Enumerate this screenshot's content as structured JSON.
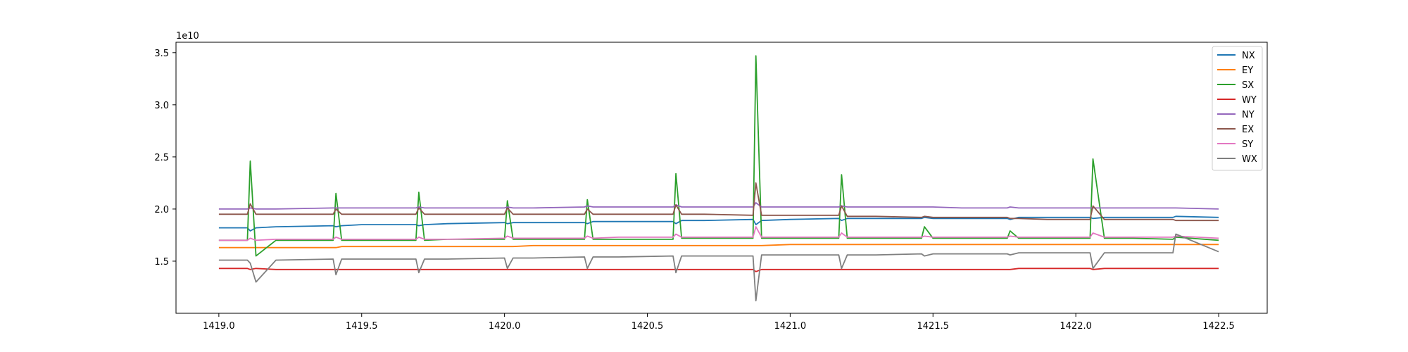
{
  "chart_data": {
    "type": "line",
    "title": "",
    "xlabel": "",
    "ylabel": "",
    "y_offset_text": "1e10",
    "xlim": [
      1418.85,
      1422.67
    ],
    "ylim": [
      1.0,
      3.6
    ],
    "xticks": [
      1419.0,
      1419.5,
      1420.0,
      1420.5,
      1421.0,
      1421.5,
      1422.0,
      1422.5
    ],
    "xtick_labels": [
      "1419.0",
      "1419.5",
      "1420.0",
      "1420.5",
      "1421.0",
      "1421.5",
      "1422.0",
      "1422.5"
    ],
    "yticks": [
      1.5,
      2.0,
      2.5,
      3.0,
      3.5
    ],
    "ytick_labels": [
      "1.5",
      "2.0",
      "2.5",
      "3.0",
      "3.5"
    ],
    "grid": false,
    "legend_position": "top-right",
    "x": [
      1419.0,
      1419.1,
      1419.11,
      1419.13,
      1419.2,
      1419.4,
      1419.41,
      1419.43,
      1419.5,
      1419.69,
      1419.7,
      1419.72,
      1419.8,
      1420.0,
      1420.01,
      1420.03,
      1420.1,
      1420.28,
      1420.29,
      1420.31,
      1420.4,
      1420.59,
      1420.6,
      1420.62,
      1420.7,
      1420.87,
      1420.88,
      1420.9,
      1421.0,
      1421.17,
      1421.18,
      1421.2,
      1421.3,
      1421.46,
      1421.47,
      1421.5,
      1421.6,
      1421.76,
      1421.77,
      1421.8,
      1421.9,
      1422.05,
      1422.06,
      1422.1,
      1422.2,
      1422.34,
      1422.35,
      1422.5
    ],
    "series": [
      {
        "name": "NX",
        "color": "#1f77b4",
        "values": [
          1.82,
          1.82,
          1.79,
          1.82,
          1.83,
          1.84,
          1.83,
          1.84,
          1.85,
          1.85,
          1.84,
          1.85,
          1.86,
          1.87,
          1.86,
          1.87,
          1.87,
          1.87,
          1.86,
          1.88,
          1.88,
          1.88,
          1.86,
          1.89,
          1.89,
          1.9,
          1.85,
          1.89,
          1.9,
          1.91,
          1.89,
          1.91,
          1.91,
          1.91,
          1.92,
          1.91,
          1.91,
          1.91,
          1.9,
          1.92,
          1.92,
          1.92,
          1.91,
          1.92,
          1.92,
          1.92,
          1.93,
          1.92
        ]
      },
      {
        "name": "EY",
        "color": "#ff7f0e",
        "values": [
          1.63,
          1.63,
          1.63,
          1.63,
          1.63,
          1.63,
          1.63,
          1.64,
          1.64,
          1.64,
          1.64,
          1.64,
          1.64,
          1.64,
          1.64,
          1.64,
          1.65,
          1.65,
          1.65,
          1.65,
          1.65,
          1.65,
          1.65,
          1.65,
          1.65,
          1.65,
          1.65,
          1.65,
          1.66,
          1.66,
          1.66,
          1.66,
          1.66,
          1.66,
          1.66,
          1.66,
          1.66,
          1.66,
          1.66,
          1.66,
          1.66,
          1.66,
          1.66,
          1.66,
          1.66,
          1.66,
          1.66,
          1.66
        ]
      },
      {
        "name": "SX",
        "color": "#2ca02c",
        "values": [
          1.7,
          1.7,
          2.46,
          1.55,
          1.7,
          1.7,
          2.15,
          1.7,
          1.7,
          1.7,
          2.16,
          1.7,
          1.71,
          1.71,
          2.08,
          1.71,
          1.71,
          1.71,
          2.09,
          1.71,
          1.71,
          1.71,
          2.34,
          1.72,
          1.72,
          1.72,
          3.47,
          1.72,
          1.72,
          1.72,
          2.33,
          1.72,
          1.72,
          1.72,
          1.83,
          1.72,
          1.72,
          1.72,
          1.79,
          1.72,
          1.72,
          1.72,
          2.48,
          1.72,
          1.72,
          1.71,
          1.73,
          1.7
        ]
      },
      {
        "name": "WY",
        "color": "#d62728",
        "values": [
          1.43,
          1.43,
          1.42,
          1.43,
          1.42,
          1.42,
          1.42,
          1.42,
          1.42,
          1.42,
          1.42,
          1.42,
          1.42,
          1.42,
          1.42,
          1.42,
          1.42,
          1.42,
          1.42,
          1.42,
          1.42,
          1.42,
          1.42,
          1.42,
          1.42,
          1.42,
          1.4,
          1.42,
          1.42,
          1.42,
          1.42,
          1.42,
          1.42,
          1.42,
          1.42,
          1.42,
          1.42,
          1.42,
          1.42,
          1.43,
          1.43,
          1.43,
          1.42,
          1.43,
          1.43,
          1.43,
          1.43,
          1.43
        ]
      },
      {
        "name": "NY",
        "color": "#9467bd",
        "values": [
          2.0,
          2.0,
          2.01,
          2.0,
          2.0,
          2.01,
          2.01,
          2.01,
          2.01,
          2.01,
          2.02,
          2.01,
          2.01,
          2.01,
          2.02,
          2.01,
          2.01,
          2.02,
          2.03,
          2.02,
          2.02,
          2.02,
          2.04,
          2.02,
          2.02,
          2.02,
          2.06,
          2.02,
          2.02,
          2.02,
          2.03,
          2.02,
          2.02,
          2.02,
          2.02,
          2.02,
          2.01,
          2.01,
          2.02,
          2.01,
          2.01,
          2.01,
          2.01,
          2.01,
          2.01,
          2.01,
          2.01,
          2.0
        ]
      },
      {
        "name": "EX",
        "color": "#8c564b",
        "values": [
          1.95,
          1.95,
          2.05,
          1.95,
          1.95,
          1.95,
          2.0,
          1.95,
          1.95,
          1.95,
          2.01,
          1.95,
          1.95,
          1.95,
          2.01,
          1.95,
          1.95,
          1.95,
          2.0,
          1.95,
          1.95,
          1.95,
          2.04,
          1.95,
          1.95,
          1.94,
          2.25,
          1.94,
          1.94,
          1.94,
          2.03,
          1.93,
          1.93,
          1.92,
          1.93,
          1.92,
          1.92,
          1.92,
          1.91,
          1.91,
          1.9,
          1.9,
          2.03,
          1.9,
          1.9,
          1.9,
          1.89,
          1.89
        ]
      },
      {
        "name": "SY",
        "color": "#e377c2",
        "values": [
          1.7,
          1.7,
          1.72,
          1.7,
          1.71,
          1.71,
          1.73,
          1.71,
          1.71,
          1.71,
          1.73,
          1.71,
          1.71,
          1.72,
          1.74,
          1.72,
          1.72,
          1.72,
          1.74,
          1.72,
          1.73,
          1.73,
          1.76,
          1.73,
          1.73,
          1.73,
          1.83,
          1.73,
          1.73,
          1.73,
          1.77,
          1.73,
          1.73,
          1.73,
          1.74,
          1.73,
          1.73,
          1.73,
          1.74,
          1.73,
          1.73,
          1.73,
          1.77,
          1.73,
          1.73,
          1.73,
          1.74,
          1.72
        ]
      },
      {
        "name": "WX",
        "color": "#7f7f7f",
        "values": [
          1.51,
          1.51,
          1.48,
          1.3,
          1.51,
          1.52,
          1.37,
          1.52,
          1.52,
          1.52,
          1.39,
          1.52,
          1.52,
          1.53,
          1.43,
          1.53,
          1.53,
          1.54,
          1.43,
          1.54,
          1.54,
          1.55,
          1.39,
          1.55,
          1.55,
          1.55,
          1.12,
          1.56,
          1.56,
          1.56,
          1.43,
          1.56,
          1.56,
          1.57,
          1.55,
          1.57,
          1.57,
          1.57,
          1.56,
          1.58,
          1.58,
          1.58,
          1.43,
          1.58,
          1.58,
          1.58,
          1.76,
          1.59
        ]
      }
    ]
  }
}
